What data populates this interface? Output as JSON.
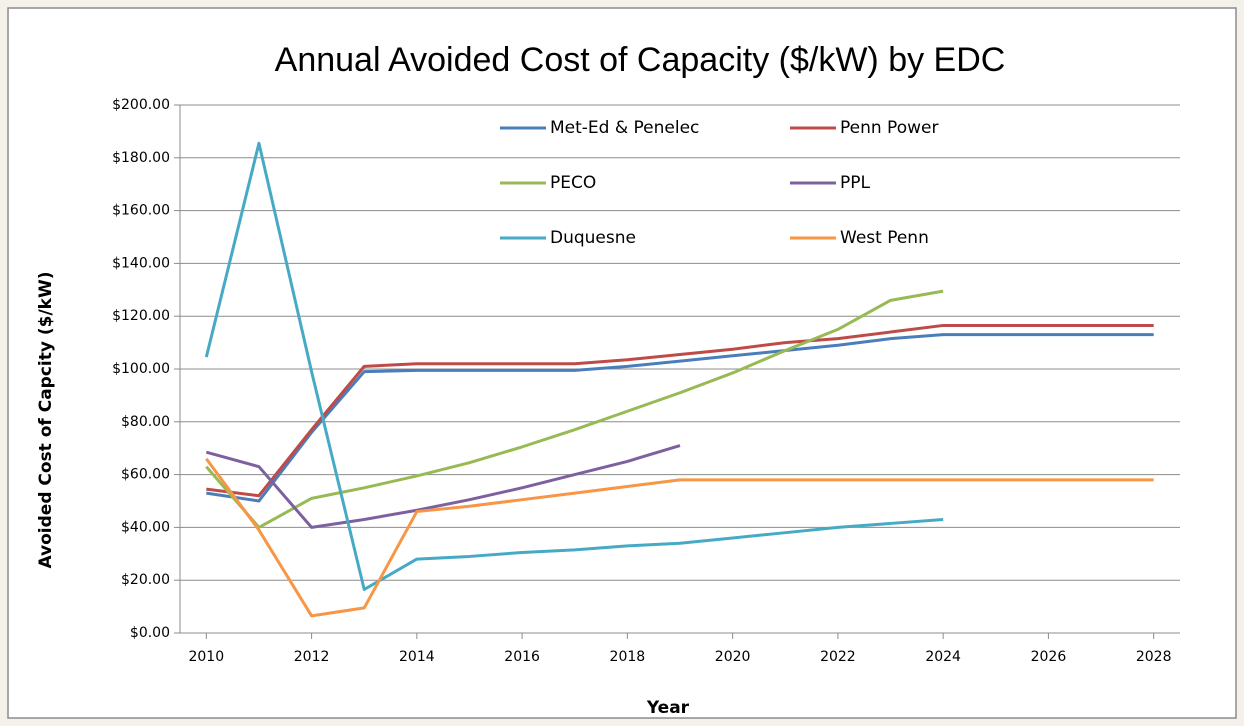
{
  "chart_data": {
    "type": "line",
    "title": "Annual Avoided Cost of Capacity ($/kW) by EDC",
    "x_label": "Year",
    "y_label": "Avoided Cost of Capcity ($/kW)",
    "x": [
      2010,
      2011,
      2012,
      2013,
      2014,
      2015,
      2016,
      2017,
      2018,
      2019,
      2020,
      2021,
      2022,
      2023,
      2024,
      2025,
      2026,
      2027,
      2028
    ],
    "series": [
      {
        "name": "Met-Ed & Penelec",
        "color": "#4a7ebb",
        "values": [
          53,
          50,
          76,
          99,
          99.5,
          99.5,
          99.5,
          99.5,
          101,
          103,
          105,
          107,
          109,
          111.5,
          113,
          113,
          113,
          113,
          113
        ]
      },
      {
        "name": "Penn Power",
        "color": "#be4b48",
        "values": [
          54.5,
          52,
          77,
          101,
          102,
          102,
          102,
          102,
          103.5,
          105.5,
          107.5,
          110,
          111.5,
          114,
          116.5,
          116.5,
          116.5,
          116.5,
          116.5
        ]
      },
      {
        "name": "PECO",
        "color": "#98b954",
        "values": [
          63,
          40,
          51,
          55,
          59.5,
          64.5,
          70.5,
          77,
          84,
          91,
          98.5,
          107,
          115,
          126,
          129.5,
          null,
          null,
          null,
          null
        ]
      },
      {
        "name": "PPL",
        "color": "#7d60a0",
        "values": [
          68.5,
          63,
          40,
          43,
          46.5,
          50.5,
          55,
          60,
          65,
          71,
          null,
          null,
          null,
          null,
          null,
          null,
          null,
          null,
          null
        ]
      },
      {
        "name": "Duquesne",
        "color": "#46aac5",
        "values": [
          104.5,
          185.5,
          99,
          16.5,
          28,
          29,
          30.5,
          31.5,
          33,
          34,
          36,
          38,
          40,
          41.5,
          43,
          null,
          null,
          null,
          null
        ]
      },
      {
        "name": "West Penn",
        "color": "#f79646",
        "values": [
          66,
          39,
          6.5,
          9.5,
          46,
          48,
          50.5,
          53,
          55.5,
          58,
          58,
          58,
          58,
          58,
          58,
          58,
          58,
          58,
          58
        ]
      }
    ],
    "xlim": [
      2009.5,
      2028.5
    ],
    "xticks": [
      2010,
      2012,
      2014,
      2016,
      2018,
      2020,
      2022,
      2024,
      2026,
      2028
    ],
    "ylim": [
      0,
      200
    ],
    "yticks": [
      {
        "value": 0,
        "label": "$0.00"
      },
      {
        "value": 20,
        "label": "$20.00"
      },
      {
        "value": 40,
        "label": "$40.00"
      },
      {
        "value": 60,
        "label": "$60.00"
      },
      {
        "value": 80,
        "label": "$80.00"
      },
      {
        "value": 100,
        "label": "$100.00"
      },
      {
        "value": 120,
        "label": "$120.00"
      },
      {
        "value": 140,
        "label": "$140.00"
      },
      {
        "value": 160,
        "label": "$160.00"
      },
      {
        "value": 180,
        "label": "$180.00"
      },
      {
        "value": 200,
        "label": "$200.00"
      }
    ],
    "grid": true,
    "legend": "top-right"
  }
}
